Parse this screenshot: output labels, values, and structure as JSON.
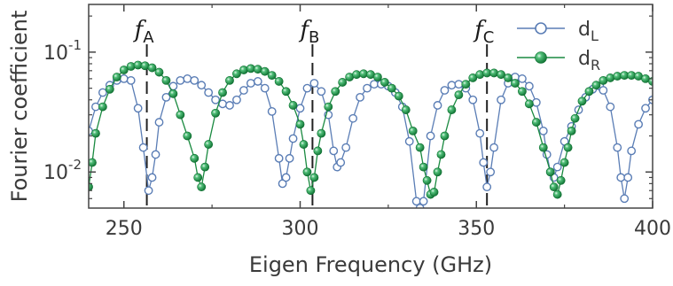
{
  "chart_data": {
    "type": "line",
    "title": "",
    "xlabel": "Eigen Frequency (GHz)",
    "ylabel": "Fourier coefficient",
    "xlim": [
      240,
      400
    ],
    "ylim": [
      0.005,
      0.25
    ],
    "yscale": "log",
    "xticks": [
      250,
      300,
      350,
      400
    ],
    "xtick_labels": [
      "250",
      "300",
      "350",
      "400"
    ],
    "yticks": [
      0.01,
      0.1
    ],
    "ytick_labels": [
      {
        "base": "10",
        "exp": "-2"
      },
      {
        "base": "10",
        "exp": "-1"
      }
    ],
    "grid": false,
    "legend": {
      "placement": "top-right",
      "entries": [
        {
          "name": "d",
          "sub": "L",
          "marker": "open-circle",
          "color": "#5a7db5"
        },
        {
          "name": "d",
          "sub": "R",
          "marker": "filled-circle",
          "color": "#1a8a40"
        }
      ]
    },
    "markers": [
      {
        "label": "f",
        "sub": "A",
        "x": 256.5
      },
      {
        "label": "f",
        "sub": "B",
        "x": 303.5
      },
      {
        "label": "f",
        "sub": "C",
        "x": 353
      }
    ],
    "series": [
      {
        "name": "dL",
        "color": "#5a7db5",
        "marker": "open",
        "points": [
          [
            240,
            0.022
          ],
          [
            242,
            0.035
          ],
          [
            244,
            0.046
          ],
          [
            246,
            0.053
          ],
          [
            248,
            0.058
          ],
          [
            250,
            0.06
          ],
          [
            252,
            0.058
          ],
          [
            254,
            0.034
          ],
          [
            255.5,
            0.016
          ],
          [
            257,
            0.007
          ],
          [
            258,
            0.009
          ],
          [
            259,
            0.014
          ],
          [
            260,
            0.026
          ],
          [
            262,
            0.042
          ],
          [
            264,
            0.052
          ],
          [
            266,
            0.058
          ],
          [
            268,
            0.06
          ],
          [
            270,
            0.058
          ],
          [
            272,
            0.053
          ],
          [
            274,
            0.046
          ],
          [
            276,
            0.04
          ],
          [
            278,
            0.037
          ],
          [
            280,
            0.036
          ],
          [
            282,
            0.04
          ],
          [
            284,
            0.048
          ],
          [
            286,
            0.055
          ],
          [
            288,
            0.057
          ],
          [
            290,
            0.05
          ],
          [
            292,
            0.032
          ],
          [
            294,
            0.013
          ],
          [
            295,
            0.008
          ],
          [
            296,
            0.009
          ],
          [
            297,
            0.013
          ],
          [
            298,
            0.019
          ],
          [
            300,
            0.034
          ],
          [
            302,
            0.05
          ],
          [
            304,
            0.055
          ],
          [
            306,
            0.047
          ],
          [
            308,
            0.03
          ],
          [
            309.5,
            0.015
          ],
          [
            310.5,
            0.011
          ],
          [
            311.5,
            0.012
          ],
          [
            313,
            0.016
          ],
          [
            315,
            0.028
          ],
          [
            317,
            0.042
          ],
          [
            319,
            0.05
          ],
          [
            321,
            0.054
          ],
          [
            323,
            0.054
          ],
          [
            325,
            0.052
          ],
          [
            327,
            0.046
          ],
          [
            329,
            0.035
          ],
          [
            331,
            0.018
          ],
          [
            333,
            0.0057
          ],
          [
            334,
            0.005
          ],
          [
            335,
            0.0057
          ],
          [
            337,
            0.02
          ],
          [
            339,
            0.036
          ],
          [
            341,
            0.048
          ],
          [
            343,
            0.053
          ],
          [
            345,
            0.054
          ],
          [
            347,
            0.05
          ],
          [
            349,
            0.04
          ],
          [
            351,
            0.021
          ],
          [
            352,
            0.012
          ],
          [
            353,
            0.0075
          ],
          [
            354,
            0.01
          ],
          [
            355,
            0.016
          ],
          [
            357,
            0.04
          ],
          [
            359,
            0.055
          ],
          [
            361,
            0.062
          ],
          [
            363,
            0.06
          ],
          [
            365,
            0.052
          ],
          [
            367,
            0.038
          ],
          [
            369,
            0.022
          ],
          [
            370,
            0.014
          ],
          [
            371,
            0.01
          ],
          [
            372,
            0.009
          ],
          [
            373,
            0.011
          ],
          [
            375,
            0.018
          ],
          [
            377,
            0.024
          ],
          [
            379,
            0.033
          ],
          [
            381,
            0.042
          ],
          [
            383,
            0.049
          ],
          [
            385,
            0.052
          ],
          [
            386,
            0.048
          ],
          [
            388,
            0.035
          ],
          [
            390,
            0.016
          ],
          [
            391,
            0.009
          ],
          [
            392,
            0.006
          ],
          [
            393,
            0.009
          ],
          [
            394,
            0.015
          ],
          [
            396,
            0.025
          ],
          [
            398,
            0.034
          ],
          [
            400,
            0.04
          ]
        ]
      },
      {
        "name": "dR",
        "color": "#1a8a40",
        "marker": "filled",
        "points": [
          [
            240,
            0.0075
          ],
          [
            241,
            0.012
          ],
          [
            242,
            0.021
          ],
          [
            244,
            0.035
          ],
          [
            246,
            0.049
          ],
          [
            248,
            0.062
          ],
          [
            250,
            0.071
          ],
          [
            252,
            0.076
          ],
          [
            254,
            0.078
          ],
          [
            256,
            0.077
          ],
          [
            258,
            0.074
          ],
          [
            260,
            0.068
          ],
          [
            262,
            0.058
          ],
          [
            264,
            0.045
          ],
          [
            266,
            0.03
          ],
          [
            268,
            0.02
          ],
          [
            270,
            0.013
          ],
          [
            271,
            0.009
          ],
          [
            272,
            0.0075
          ],
          [
            273,
            0.011
          ],
          [
            274,
            0.017
          ],
          [
            276,
            0.031
          ],
          [
            278,
            0.046
          ],
          [
            280,
            0.058
          ],
          [
            282,
            0.066
          ],
          [
            284,
            0.071
          ],
          [
            286,
            0.073
          ],
          [
            288,
            0.072
          ],
          [
            290,
            0.069
          ],
          [
            292,
            0.064
          ],
          [
            294,
            0.057
          ],
          [
            296,
            0.047
          ],
          [
            298,
            0.036
          ],
          [
            300,
            0.025
          ],
          [
            301,
            0.017
          ],
          [
            302,
            0.01
          ],
          [
            303,
            0.007
          ],
          [
            304,
            0.009
          ],
          [
            305,
            0.015
          ],
          [
            306,
            0.021
          ],
          [
            308,
            0.035
          ],
          [
            310,
            0.047
          ],
          [
            312,
            0.056
          ],
          [
            314,
            0.062
          ],
          [
            316,
            0.065
          ],
          [
            318,
            0.066
          ],
          [
            320,
            0.065
          ],
          [
            322,
            0.062
          ],
          [
            324,
            0.056
          ],
          [
            326,
            0.05
          ],
          [
            328,
            0.043
          ],
          [
            330,
            0.033
          ],
          [
            332,
            0.022
          ],
          [
            334,
            0.016
          ],
          [
            335,
            0.011
          ],
          [
            336,
            0.0085
          ],
          [
            337,
            0.0065
          ],
          [
            338,
            0.0068
          ],
          [
            339,
            0.01
          ],
          [
            340,
            0.014
          ],
          [
            341,
            0.02
          ],
          [
            343,
            0.033
          ],
          [
            345,
            0.044
          ],
          [
            347,
            0.054
          ],
          [
            349,
            0.061
          ],
          [
            351,
            0.065
          ],
          [
            353,
            0.067
          ],
          [
            355,
            0.067
          ],
          [
            357,
            0.065
          ],
          [
            359,
            0.061
          ],
          [
            361,
            0.055
          ],
          [
            363,
            0.047
          ],
          [
            365,
            0.037
          ],
          [
            367,
            0.026
          ],
          [
            369,
            0.016
          ],
          [
            371,
            0.01
          ],
          [
            372,
            0.0075
          ],
          [
            373,
            0.0065
          ],
          [
            374,
            0.0085
          ],
          [
            375,
            0.012
          ],
          [
            376,
            0.016
          ],
          [
            377,
            0.022
          ],
          [
            378,
            0.028
          ],
          [
            380,
            0.039
          ],
          [
            382,
            0.047
          ],
          [
            384,
            0.053
          ],
          [
            386,
            0.058
          ],
          [
            388,
            0.061
          ],
          [
            390,
            0.063
          ],
          [
            392,
            0.064
          ],
          [
            394,
            0.064
          ],
          [
            396,
            0.063
          ],
          [
            398,
            0.06
          ],
          [
            400,
            0.057
          ]
        ]
      }
    ]
  }
}
